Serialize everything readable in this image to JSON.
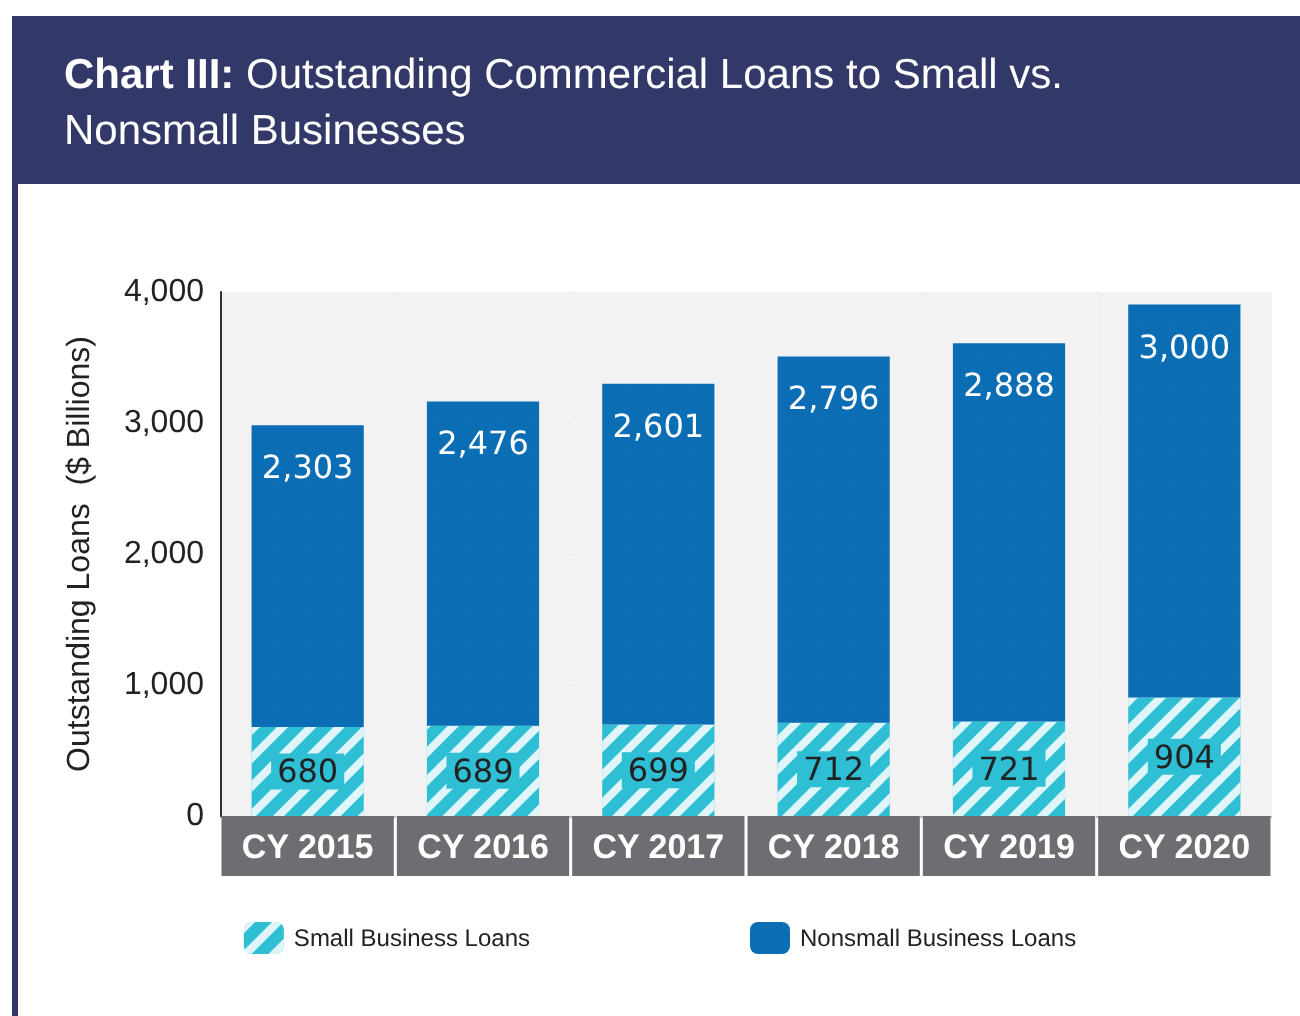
{
  "chart_data": {
    "type": "bar",
    "title": "Chart III: Outstanding Commercial Loans to Small vs. Nonsmall Businesses",
    "ylabel": "Outstanding Loans  ($ Billions)",
    "categories": [
      "CY 2015",
      "CY 2016",
      "CY 2017",
      "CY 2018",
      "CY 2019",
      "CY 2020"
    ],
    "series": [
      {
        "name": "Small Business Loans",
        "color": "#2ebfd4",
        "values": [
          680,
          689,
          699,
          712,
          721,
          904
        ],
        "value_labels": [
          "680",
          "689",
          "699",
          "712",
          "721",
          "904"
        ]
      },
      {
        "name": "Nonsmall Business Loans",
        "color": "#0b6db3",
        "values": [
          2303,
          2476,
          2601,
          2796,
          2888,
          3000
        ],
        "value_labels": [
          "2,303",
          "2,476",
          "2,601",
          "2,796",
          "2,888",
          "3,000"
        ]
      }
    ],
    "stacked": true,
    "ylim": [
      0,
      4000
    ],
    "yticks": [
      0,
      {
        "value": 1000,
        "label": "1,000"
      },
      {
        "value": 2000,
        "label": "2,000"
      },
      {
        "value": 3000,
        "label": "3,000"
      },
      {
        "value": 4000,
        "label": "4,000"
      }
    ],
    "grid": "y",
    "legend": "bottom"
  }
}
